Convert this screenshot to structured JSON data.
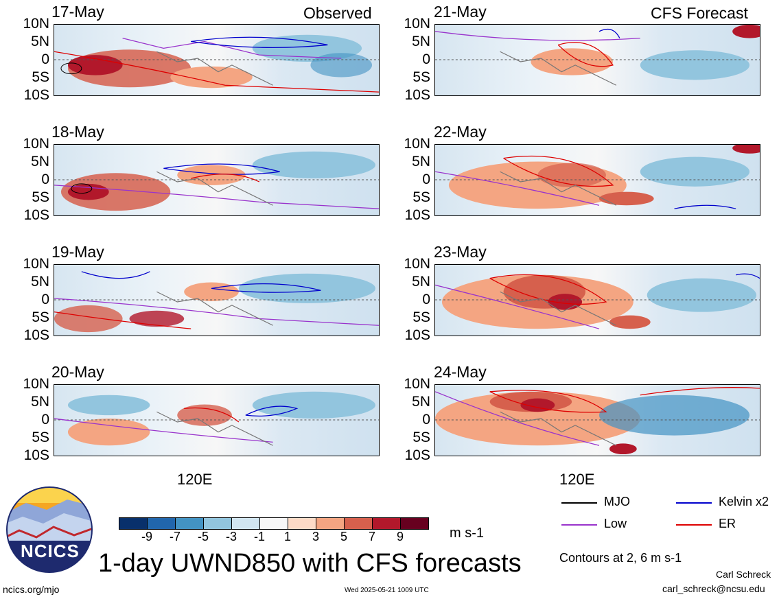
{
  "left_header": "Observed",
  "right_header": "CFS Forecast",
  "panels": [
    {
      "date": "17-May"
    },
    {
      "date": "18-May"
    },
    {
      "date": "19-May"
    },
    {
      "date": "20-May"
    },
    {
      "date": "21-May"
    },
    {
      "date": "22-May"
    },
    {
      "date": "23-May"
    },
    {
      "date": "24-May"
    }
  ],
  "lat_labels": [
    "10N",
    "5N",
    "0",
    "5S",
    "10S"
  ],
  "x_label": "120E",
  "colorbar": {
    "colors": [
      "#08306b",
      "#2166ac",
      "#4393c3",
      "#92c5de",
      "#d1e5f0",
      "#f7f7f7",
      "#fddbc7",
      "#f4a582",
      "#d6604d",
      "#b2182b",
      "#67001f"
    ],
    "ticks": [
      "-9",
      "-7",
      "-5",
      "-3",
      "-1",
      "1",
      "3",
      "5",
      "7",
      "9"
    ],
    "unit": "m s-1"
  },
  "legend": {
    "mjo": "MJO",
    "kelvin": "Kelvin x2",
    "low": "Low",
    "er": "ER",
    "mjo_color": "#000000",
    "kelvin_color": "#0000cc",
    "low_color": "#9933cc",
    "er_color": "#dd0000",
    "contours": "Contours at 2, 6 m s-1"
  },
  "title": "1-day UWND850 with CFS forecasts",
  "logo_text": "NCICS",
  "url": "ncics.org/mjo",
  "timestamp": "Wed 2025-05-21 1009 UTC",
  "author": "Carl Schreck",
  "email": "carl_schreck@ncsu.edu"
}
